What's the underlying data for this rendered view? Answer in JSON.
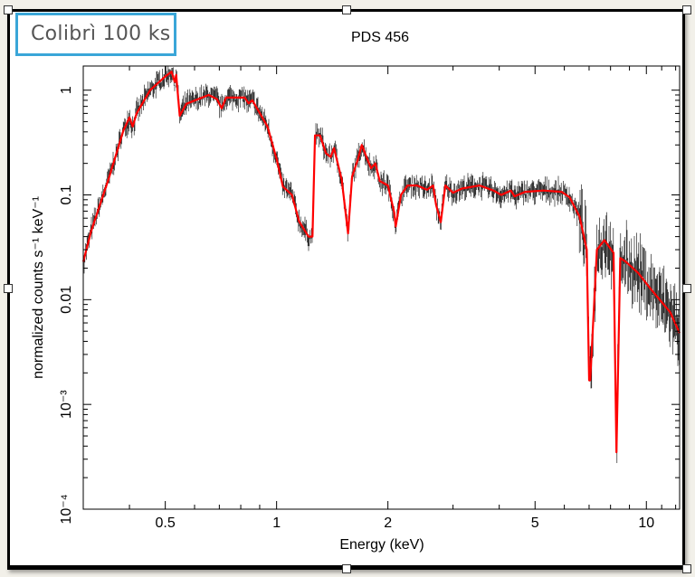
{
  "overlay_label": "Colibrì 100 ks",
  "chart_data": {
    "type": "line",
    "title": "PDS 456",
    "xlabel": "Energy (keV)",
    "ylabel": "normalized counts s⁻¹ keV⁻¹",
    "xscale": "log",
    "yscale": "log",
    "xlim": [
      0.3,
      12.3
    ],
    "ylim": [
      0.0001,
      1.7
    ],
    "xticks": [
      {
        "v": 0.5,
        "label": "0.5"
      },
      {
        "v": 1,
        "label": "1"
      },
      {
        "v": 2,
        "label": "2"
      },
      {
        "v": 5,
        "label": "5"
      },
      {
        "v": 10,
        "label": "10"
      }
    ],
    "yticks": [
      {
        "v": 1,
        "label": "1"
      },
      {
        "v": 0.1,
        "label": "0.1"
      },
      {
        "v": 0.01,
        "label": "0.01"
      },
      {
        "v": 0.001,
        "label": "10⁻³"
      },
      {
        "v": 0.0001,
        "label": "10⁻⁴"
      }
    ],
    "grid": false,
    "colors": {
      "model": "#ff0000",
      "data": "#000000"
    },
    "series": [
      {
        "role": "model",
        "x": [
          0.3,
          0.315,
          0.353,
          0.385,
          0.4,
          0.408,
          0.418,
          0.455,
          0.5,
          0.52,
          0.53,
          0.535,
          0.547,
          0.57,
          0.655,
          0.69,
          0.71,
          0.73,
          0.82,
          0.84,
          0.86,
          0.945,
          1.0,
          1.04,
          1.1,
          1.15,
          1.22,
          1.25,
          1.27,
          1.31,
          1.36,
          1.4,
          1.43,
          1.5,
          1.56,
          1.6,
          1.66,
          1.7,
          1.75,
          1.8,
          1.85,
          1.9,
          2.0,
          2.08,
          2.1,
          2.17,
          2.26,
          2.4,
          2.55,
          2.65,
          2.7,
          2.78,
          2.86,
          3.0,
          3.17,
          3.54,
          3.86,
          4.05,
          4.3,
          4.4,
          4.7,
          5.27,
          5.9,
          6.2,
          6.6,
          6.9,
          7.0,
          7.05,
          7.35,
          7.7,
          8.15,
          8.3,
          8.5,
          8.8,
          9.5,
          10.3,
          11.6,
          12.3
        ],
        "y": [
          0.023,
          0.045,
          0.15,
          0.41,
          0.55,
          0.45,
          0.6,
          1.0,
          1.35,
          1.5,
          1.2,
          1.4,
          0.57,
          0.74,
          0.9,
          0.82,
          0.67,
          0.85,
          0.85,
          0.75,
          0.8,
          0.45,
          0.22,
          0.12,
          0.1,
          0.056,
          0.04,
          0.04,
          0.37,
          0.37,
          0.25,
          0.23,
          0.28,
          0.14,
          0.043,
          0.15,
          0.22,
          0.3,
          0.23,
          0.18,
          0.2,
          0.136,
          0.123,
          0.068,
          0.05,
          0.1,
          0.123,
          0.123,
          0.112,
          0.123,
          0.08,
          0.055,
          0.123,
          0.105,
          0.115,
          0.123,
          0.11,
          0.1,
          0.11,
          0.097,
          0.107,
          0.11,
          0.107,
          0.095,
          0.062,
          0.03,
          0.0017,
          0.0017,
          0.03,
          0.037,
          0.028,
          0.00035,
          0.025,
          0.023,
          0.018,
          0.0125,
          0.0076,
          0.0048
        ]
      }
    ]
  }
}
